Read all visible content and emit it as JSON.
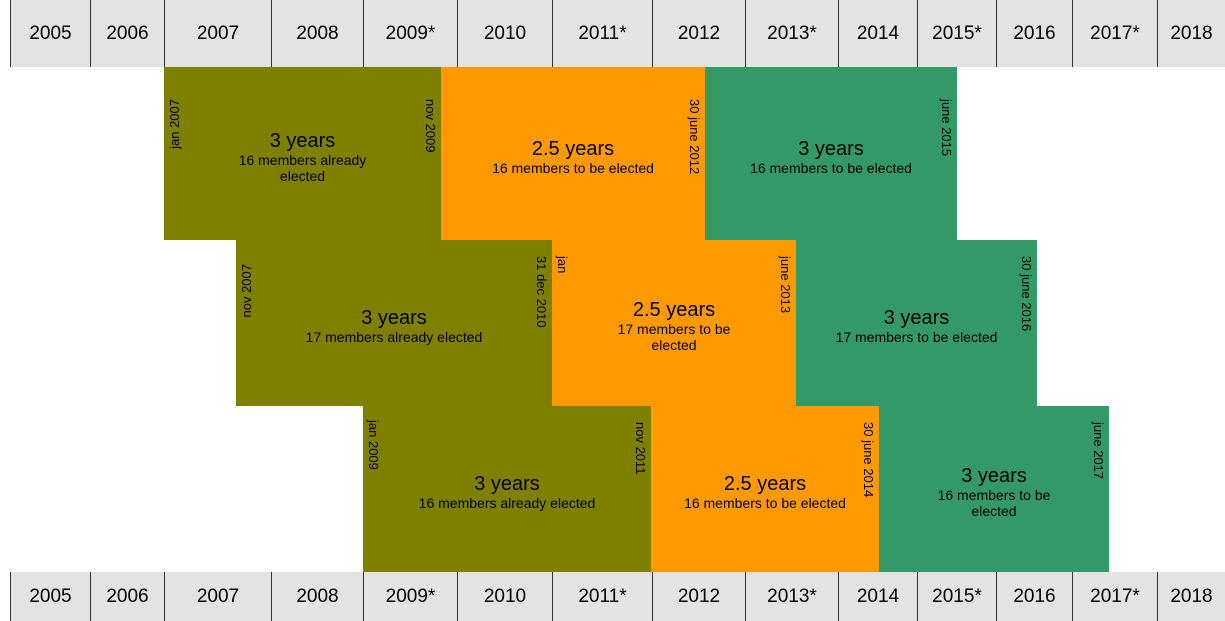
{
  "years": [
    "2005",
    "2006",
    "2007",
    "2008",
    "2009*",
    "2010",
    "2011*",
    "2012",
    "2013*",
    "2014",
    "2015*",
    "2016",
    "2017*",
    "2018"
  ],
  "rows": [
    [
      {
        "duration": "3 years",
        "members": "16 members already elected",
        "start": "jan 2007",
        "end": "nov 2009"
      },
      {
        "duration": "2.5 years",
        "members": "16 members to be elected",
        "end": "30 june 2012"
      },
      {
        "duration": "3 years",
        "members": "16 members to be elected",
        "end": "june 2015"
      }
    ],
    [
      {
        "duration": "3 years",
        "members": "17 members already elected",
        "start": "nov 2007",
        "end": "31 dec 2010"
      },
      {
        "duration": "2.5 years",
        "members": "17 members to be elected",
        "start": "jan",
        "end": "june 2013"
      },
      {
        "duration": "3 years",
        "members": "17 members to be elected",
        "end": "30 june 2016"
      }
    ],
    [
      {
        "duration": "3 years",
        "members": "16 members already elected",
        "start": "jan 2009",
        "end": "nov 2011"
      },
      {
        "duration": "2.5 years",
        "members": "16 members to be elected",
        "end": "30 june 2014"
      },
      {
        "duration": "3 years",
        "members": "16 members to be elected",
        "end": "june 2017"
      }
    ]
  ]
}
